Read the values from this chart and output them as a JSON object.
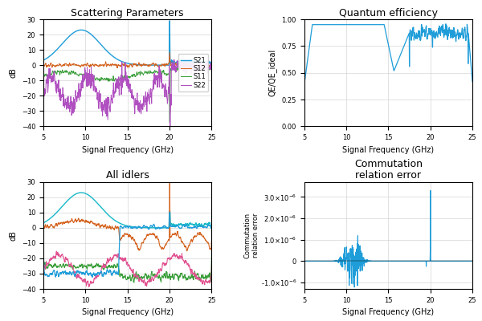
{
  "title_top_left": "Scattering Parameters",
  "title_top_right": "Quantum efficiency",
  "title_bot_left": "All idlers",
  "title_bot_right": "Commutation\nrelation error",
  "xlabel": "Signal Frequency (GHz)",
  "ylabel_scattering": "dB",
  "ylabel_qe": "QE/QE_ideal",
  "ylabel_comm": "Commutation\nrelation error",
  "xmin": 5,
  "xmax": 25,
  "scattering_ylim": [
    -40,
    30
  ],
  "qe_ylim": [
    0.0,
    1.0
  ],
  "comm_ylim": [
    -1.3e-06,
    3.7e-06
  ],
  "legend_labels": [
    "S21",
    "S12",
    "S11",
    "S22"
  ],
  "color_s21": "#1f9dd9",
  "color_s12": "#d4601a",
  "color_s11": "#3a9e3a",
  "color_s22": "#b04fc0",
  "color_qe": "#1f9dd9",
  "color_comm": "#1f9dd9",
  "colors_idlers": [
    "#17b8c8",
    "#d4601a",
    "#3a9e3a",
    "#e05090",
    "#1f9dd9"
  ],
  "background_color": "#ffffff",
  "grid_color": "#cccccc",
  "seed": 12
}
